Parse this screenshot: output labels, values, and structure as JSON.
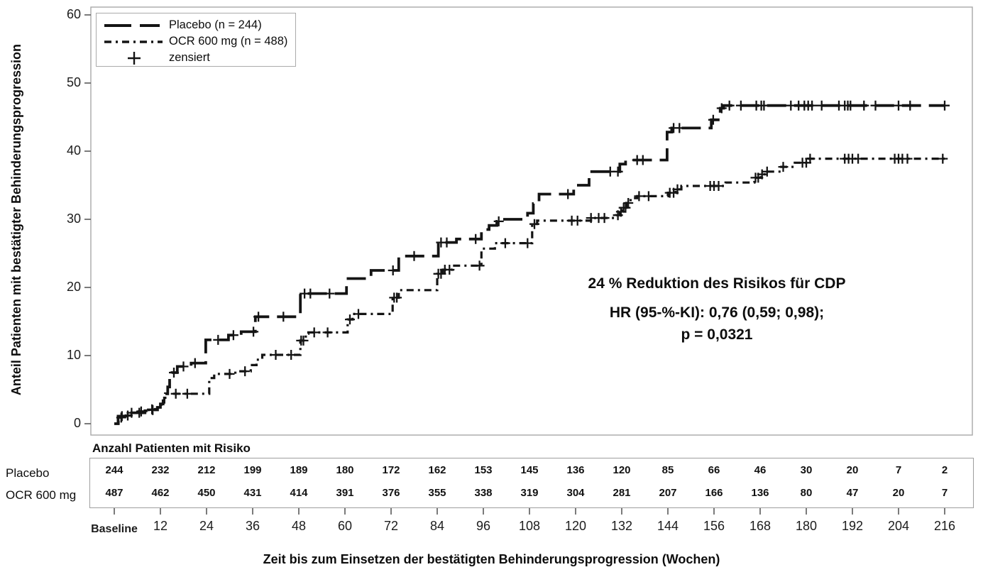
{
  "chart_data": {
    "type": "line",
    "subtype": "kaplan-meier-step",
    "title": "",
    "xlabel": "Zeit bis zum Einsetzen der bestätigten Behinderungsprogression (Wochen)",
    "ylabel": "Anteil Patienten mit bestätigter Behinderungsprogression",
    "xlim": [
      0,
      216
    ],
    "ylim": [
      0,
      60
    ],
    "x_tick_step_weeks": 12,
    "x_ticks": [
      "Baseline",
      "12",
      "24",
      "36",
      "48",
      "60",
      "72",
      "84",
      "96",
      "108",
      "120",
      "132",
      "144",
      "156",
      "168",
      "180",
      "192",
      "204",
      "216"
    ],
    "y_ticks": [
      0,
      10,
      20,
      30,
      40,
      50,
      60
    ],
    "grid": false,
    "legend_position": "top-left",
    "line_color": "#141414",
    "legend": [
      {
        "label": "Placebo (n = 244)",
        "sample": "long-dash"
      },
      {
        "label": "OCR 600 mg (n = 488)",
        "sample": "dash-dot"
      },
      {
        "label": "zensiert",
        "sample": "censor-cross"
      }
    ],
    "series": [
      {
        "name": "Placebo (n = 244)",
        "style": "long-dash",
        "steps": [
          [
            0,
            0
          ],
          [
            1,
            1.1
          ],
          [
            4,
            1.6
          ],
          [
            8,
            1.9
          ],
          [
            9.2,
            2.1
          ],
          [
            11.2,
            2.4
          ],
          [
            12,
            2.9
          ],
          [
            12.7,
            3.6
          ],
          [
            13.3,
            4.4
          ],
          [
            13.9,
            5.4
          ],
          [
            14.4,
            6.6
          ],
          [
            15,
            7.5
          ],
          [
            16.4,
            8.4
          ],
          [
            20,
            8.9
          ],
          [
            23.8,
            12.3
          ],
          [
            29.7,
            13.0
          ],
          [
            33,
            13.5
          ],
          [
            36.7,
            15.7
          ],
          [
            48.4,
            19.1
          ],
          [
            60.4,
            21.3
          ],
          [
            66.8,
            22.5
          ],
          [
            74,
            24.6
          ],
          [
            84.3,
            26.6
          ],
          [
            89,
            27.1
          ],
          [
            95.5,
            28.5
          ],
          [
            97.5,
            29.1
          ],
          [
            99.5,
            29.7
          ],
          [
            101,
            30.0
          ],
          [
            107.5,
            30.9
          ],
          [
            109,
            32.3
          ],
          [
            110.5,
            33.7
          ],
          [
            119.5,
            35.0
          ],
          [
            123.5,
            37.0
          ],
          [
            131.5,
            38.1
          ],
          [
            133,
            38.7
          ],
          [
            143.8,
            42.8
          ],
          [
            145,
            43.4
          ],
          [
            155.3,
            44.6
          ],
          [
            157.6,
            46.3
          ],
          [
            158.5,
            46.7
          ]
        ],
        "censor_weeks": [
          2,
          4.5,
          6.5,
          9.8,
          15.5,
          18,
          21,
          27,
          31,
          36.2,
          37.5,
          44,
          49.5,
          51,
          56,
          72.5,
          78,
          85,
          86.5,
          94,
          100,
          118,
          129,
          131,
          136,
          137.5,
          145.5,
          147,
          155.8,
          158,
          160,
          163,
          167,
          168.3,
          169,
          176,
          178,
          179.5,
          180.5,
          181.5,
          184,
          188.5,
          190,
          190.8,
          191.5,
          195,
          198,
          204,
          207,
          216
        ]
      },
      {
        "name": "OCR 600 mg (n = 488)",
        "style": "dash-dot",
        "steps": [
          [
            0,
            0
          ],
          [
            1.1,
            0.9
          ],
          [
            3,
            1.2
          ],
          [
            4.6,
            1.6
          ],
          [
            6,
            1.8
          ],
          [
            8.5,
            2.0
          ],
          [
            11.3,
            2.4
          ],
          [
            12.2,
            3.1
          ],
          [
            13,
            3.8
          ],
          [
            13.6,
            4.4
          ],
          [
            24.7,
            6.7
          ],
          [
            26,
            7.3
          ],
          [
            31.5,
            7.7
          ],
          [
            35.5,
            8.6
          ],
          [
            37,
            9.4
          ],
          [
            38.5,
            10.1
          ],
          [
            48.4,
            12.2
          ],
          [
            49.8,
            13.2
          ],
          [
            50.5,
            13.4
          ],
          [
            60.7,
            15.3
          ],
          [
            62,
            16.1
          ],
          [
            72.4,
            18.5
          ],
          [
            74,
            19.6
          ],
          [
            84,
            22.0
          ],
          [
            85.5,
            22.6
          ],
          [
            88,
            23.2
          ],
          [
            95.5,
            25.7
          ],
          [
            99,
            26.5
          ],
          [
            108.7,
            29.3
          ],
          [
            110,
            29.8
          ],
          [
            124,
            30.2
          ],
          [
            130.5,
            30.6
          ],
          [
            131.5,
            31.1
          ],
          [
            132.3,
            31.7
          ],
          [
            133.2,
            32.4
          ],
          [
            134.3,
            33.1
          ],
          [
            136,
            33.4
          ],
          [
            144,
            33.9
          ],
          [
            146,
            34.4
          ],
          [
            147.5,
            34.9
          ],
          [
            159,
            35.4
          ],
          [
            166.5,
            36.1
          ],
          [
            168.2,
            36.6
          ],
          [
            169.5,
            37.0
          ],
          [
            173.5,
            37.7
          ],
          [
            177,
            38.3
          ],
          [
            180.5,
            38.9
          ]
        ],
        "censor_weeks": [
          1.8,
          3.5,
          7,
          10,
          16,
          19,
          30,
          34,
          42,
          46,
          48.6,
          49.2,
          52,
          55.5,
          61.3,
          63.5,
          72.8,
          73.5,
          84.3,
          85,
          86,
          87.2,
          95,
          101.7,
          107.5,
          109.3,
          119,
          120.5,
          124,
          126,
          127.5,
          131,
          131.8,
          132.5,
          133,
          133.7,
          136.5,
          139,
          144.5,
          145.5,
          146.5,
          155,
          156,
          157.2,
          166.8,
          167.5,
          168.5,
          169.8,
          174,
          179,
          180,
          181,
          190,
          191,
          192,
          193.5,
          203,
          204,
          205,
          206.3,
          215.5
        ]
      }
    ],
    "annotation": {
      "line1": "24 % Reduktion des Risikos für CDP",
      "line2": "HR (95-%-KI): 0,76 (0,59; 0,98);",
      "line3": "p = 0,0321"
    },
    "risk_table": {
      "title": "Anzahl Patienten mit Risiko",
      "rows": [
        {
          "label": "Placebo",
          "values": [
            244,
            232,
            212,
            199,
            189,
            180,
            172,
            162,
            153,
            145,
            136,
            120,
            85,
            66,
            46,
            30,
            20,
            7,
            2
          ]
        },
        {
          "label": "OCR 600 mg",
          "values": [
            487,
            462,
            450,
            431,
            414,
            391,
            376,
            355,
            338,
            319,
            304,
            281,
            207,
            166,
            136,
            80,
            47,
            20,
            7
          ]
        }
      ]
    }
  }
}
